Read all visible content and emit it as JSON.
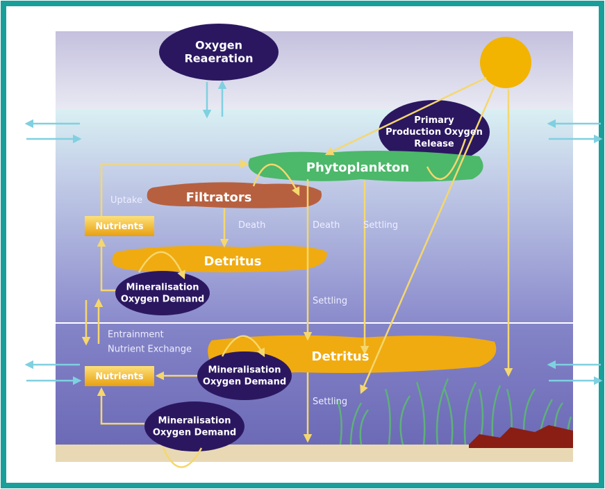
{
  "nodes": [
    {
      "label": [
        "Oxygen",
        "Reaeration"
      ]
    },
    {
      "label": [
        "Primary",
        "Production Oxygen",
        "Release"
      ]
    },
    {
      "label": [
        "Phytoplankton"
      ]
    },
    {
      "label": [
        "Filtrators"
      ]
    },
    {
      "label": [
        "Nutrients"
      ]
    },
    {
      "label": [
        "Detritus"
      ]
    },
    {
      "label": [
        "Mineralisation",
        "Oxygen Demand"
      ]
    },
    {
      "label": [
        "Detritus"
      ]
    },
    {
      "label": [
        "Mineralisation",
        "Oxygen Demand"
      ]
    },
    {
      "label": [
        "Nutrients"
      ]
    },
    {
      "label": [
        "Mineralisation",
        "Oxygen Demand"
      ]
    }
  ],
  "labels": [
    [
      "Uptake"
    ],
    [
      "Death"
    ],
    [
      "Death"
    ],
    [
      "Settling"
    ],
    [
      "Settling"
    ],
    [
      "Entrainment",
      "Nutrient Exchange"
    ],
    [
      "Settling"
    ]
  ]
}
